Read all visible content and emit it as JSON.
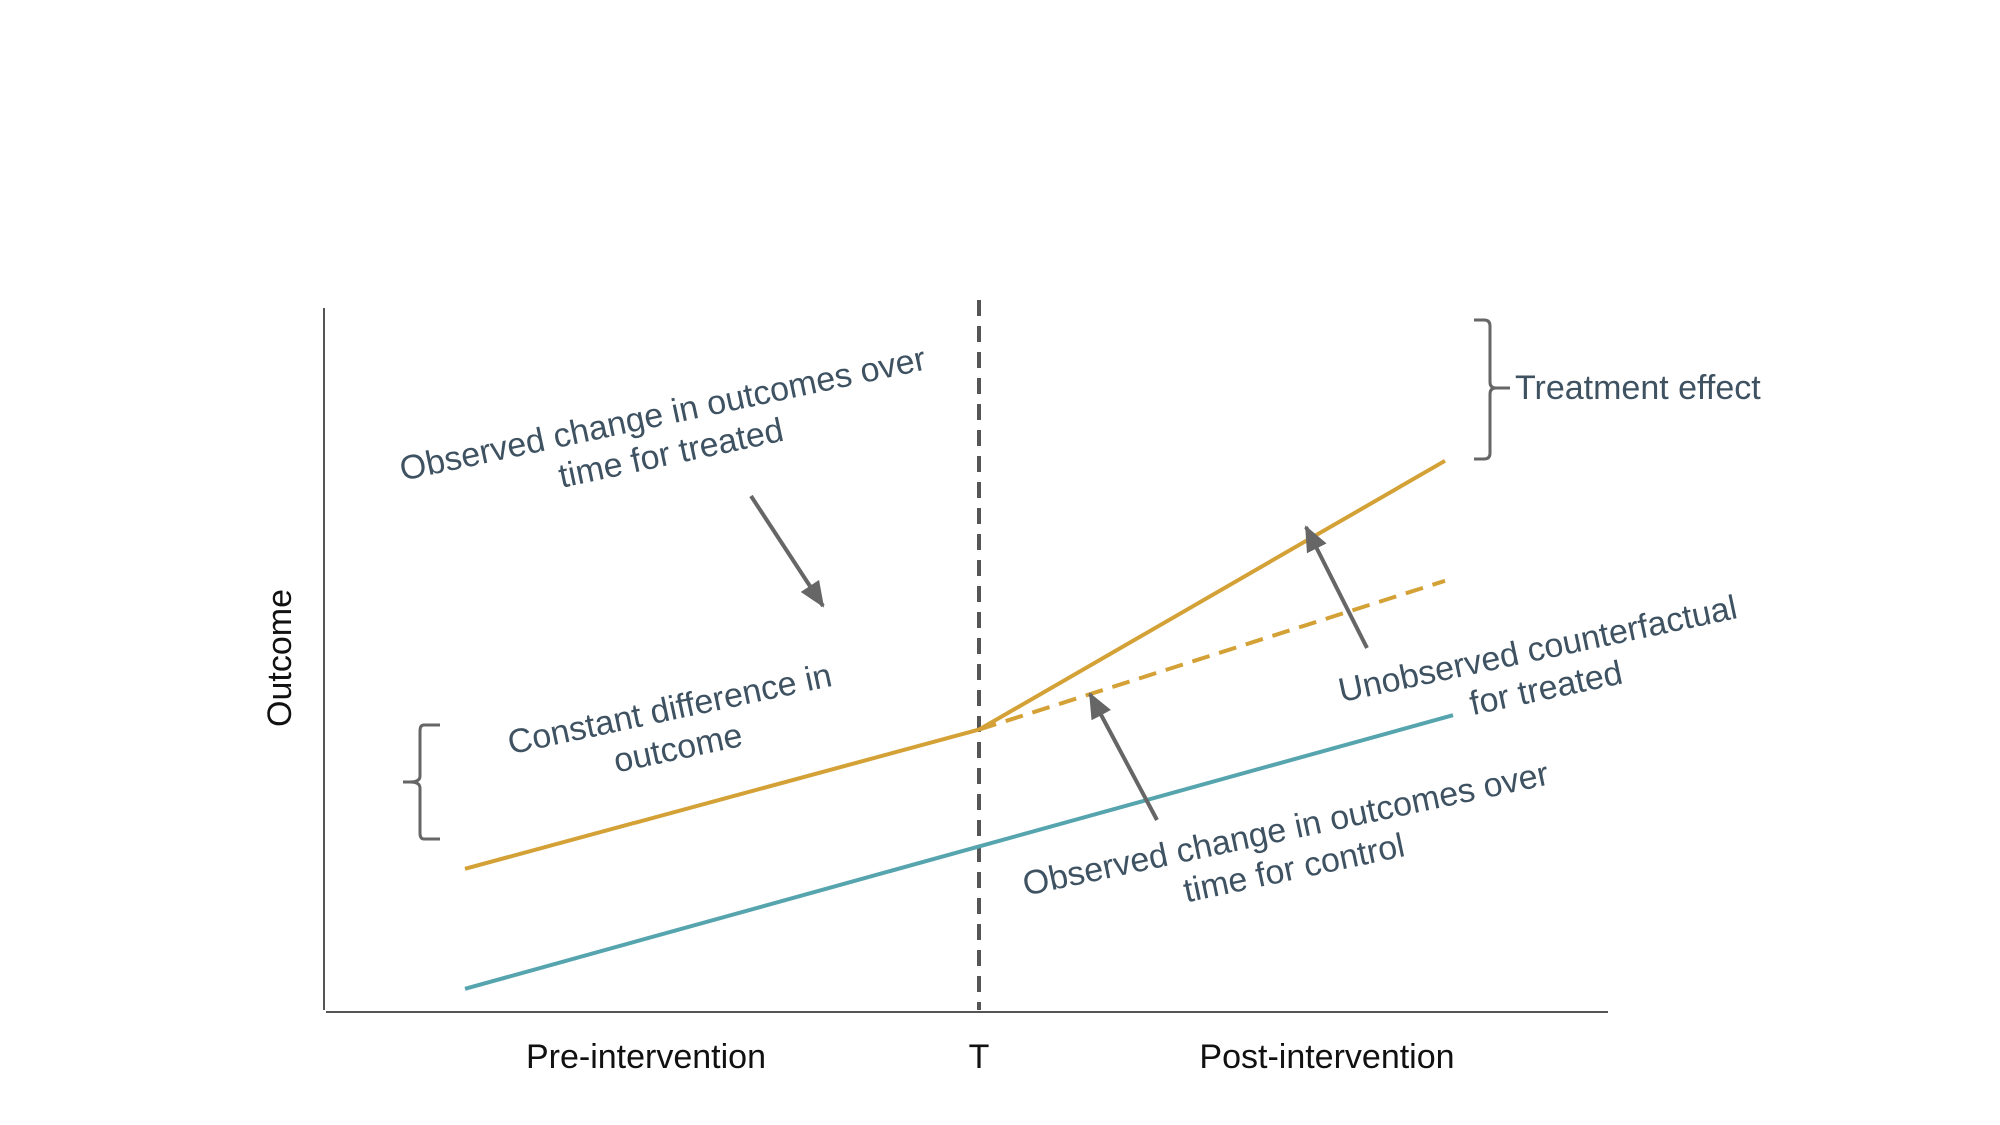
{
  "axes": {
    "y_label": "Outcome",
    "x_labels": {
      "pre": "Pre-intervention",
      "t": "T",
      "post": "Post-intervention"
    }
  },
  "annotations": {
    "treated_change": [
      "Observed change in outcomes over",
      "time for treated"
    ],
    "constant_difference": [
      "Constant difference in",
      "outcome"
    ],
    "treatment_effect": "Treatment effect",
    "counterfactual": [
      "Unobserved counterfactual",
      "for treated"
    ],
    "control_change": [
      "Observed change in outcomes over",
      "time for control"
    ]
  },
  "series": {
    "treated": {
      "values": [
        2.9,
        5.8,
        11.4
      ]
    },
    "treated_counterfactual": {
      "values": [
        5.8,
        8.9
      ]
    },
    "control": {
      "values": [
        0.4,
        3.3,
        6.1
      ]
    }
  },
  "colors": {
    "treated": "#d4a136",
    "control": "#56a5ae",
    "annotation_text": "#3e5262",
    "arrow": "#666666",
    "axis": "#555555",
    "intervention_line": "#555555"
  }
}
